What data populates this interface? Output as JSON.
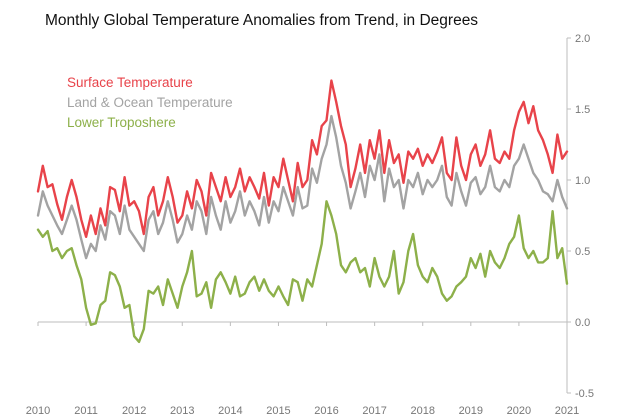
{
  "chart_data": {
    "type": "line",
    "title": "Monthly Global Temperature Anomalies from Trend, in Degrees",
    "xlabel": "",
    "ylabel": "",
    "xlim": [
      2010,
      2021
    ],
    "ylim": [
      -0.5,
      2.0
    ],
    "x_ticks": [
      "2010",
      "2011",
      "2012",
      "2013",
      "2014",
      "2015",
      "2016",
      "2017",
      "2018",
      "2019",
      "2020",
      "2021"
    ],
    "y_ticks": [
      "2.0",
      "1.5",
      "1.0",
      "0.5",
      "0.0",
      "-0.5"
    ],
    "grid": false,
    "legend_position": "top-left",
    "series": [
      {
        "name": "Surface Temperature",
        "color": "#e8434a",
        "x": [
          2010.0,
          2010.1,
          2010.2,
          2010.3,
          2010.4,
          2010.5,
          2010.6,
          2010.7,
          2010.8,
          2010.9,
          2011.0,
          2011.1,
          2011.2,
          2011.3,
          2011.4,
          2011.5,
          2011.6,
          2011.7,
          2011.8,
          2011.9,
          2012.0,
          2012.1,
          2012.2,
          2012.3,
          2012.4,
          2012.5,
          2012.6,
          2012.7,
          2012.8,
          2012.9,
          2013.0,
          2013.1,
          2013.2,
          2013.3,
          2013.4,
          2013.5,
          2013.6,
          2013.7,
          2013.8,
          2013.9,
          2014.0,
          2014.1,
          2014.2,
          2014.3,
          2014.4,
          2014.5,
          2014.6,
          2014.7,
          2014.8,
          2014.9,
          2015.0,
          2015.1,
          2015.2,
          2015.3,
          2015.4,
          2015.5,
          2015.6,
          2015.7,
          2015.8,
          2015.9,
          2016.0,
          2016.1,
          2016.2,
          2016.3,
          2016.4,
          2016.5,
          2016.6,
          2016.7,
          2016.8,
          2016.9,
          2017.0,
          2017.1,
          2017.2,
          2017.3,
          2017.4,
          2017.5,
          2017.6,
          2017.7,
          2017.8,
          2017.9,
          2018.0,
          2018.1,
          2018.2,
          2018.3,
          2018.4,
          2018.5,
          2018.6,
          2018.7,
          2018.8,
          2018.9,
          2019.0,
          2019.1,
          2019.2,
          2019.3,
          2019.4,
          2019.5,
          2019.6,
          2019.7,
          2019.8,
          2019.9,
          2020.0,
          2020.1,
          2020.2,
          2020.3,
          2020.4,
          2020.5,
          2020.6,
          2020.7,
          2020.8,
          2020.9,
          2021.0
        ],
        "values": [
          0.92,
          1.1,
          0.95,
          0.97,
          0.83,
          0.72,
          0.88,
          1.0,
          0.88,
          0.72,
          0.6,
          0.75,
          0.62,
          0.8,
          0.68,
          0.95,
          0.93,
          0.78,
          1.02,
          0.82,
          0.85,
          0.78,
          0.62,
          0.88,
          0.95,
          0.75,
          0.85,
          1.02,
          0.88,
          0.7,
          0.75,
          0.92,
          0.8,
          1.0,
          0.92,
          0.75,
          1.05,
          0.95,
          0.85,
          1.02,
          0.88,
          0.95,
          1.08,
          0.92,
          1.02,
          0.95,
          0.87,
          1.05,
          0.82,
          1.02,
          0.95,
          1.15,
          1.0,
          0.85,
          1.12,
          0.95,
          1.0,
          1.28,
          1.18,
          1.38,
          1.42,
          1.7,
          1.55,
          1.38,
          1.25,
          0.95,
          1.08,
          1.25,
          1.05,
          1.28,
          1.15,
          1.35,
          1.05,
          1.28,
          1.12,
          1.18,
          0.98,
          1.2,
          1.15,
          1.22,
          1.1,
          1.18,
          1.12,
          1.2,
          1.3,
          1.05,
          1.0,
          1.3,
          1.1,
          1.0,
          1.18,
          1.25,
          1.1,
          1.18,
          1.35,
          1.15,
          1.12,
          1.2,
          1.15,
          1.35,
          1.48,
          1.55,
          1.4,
          1.52,
          1.35,
          1.28,
          1.18,
          1.05,
          1.32,
          1.15,
          1.2
        ]
      },
      {
        "name": "Land & Ocean Temperature",
        "color": "#a3a3a3",
        "x": [
          2010.0,
          2010.1,
          2010.2,
          2010.3,
          2010.4,
          2010.5,
          2010.6,
          2010.7,
          2010.8,
          2010.9,
          2011.0,
          2011.1,
          2011.2,
          2011.3,
          2011.4,
          2011.5,
          2011.6,
          2011.7,
          2011.8,
          2011.9,
          2012.0,
          2012.1,
          2012.2,
          2012.3,
          2012.4,
          2012.5,
          2012.6,
          2012.7,
          2012.8,
          2012.9,
          2013.0,
          2013.1,
          2013.2,
          2013.3,
          2013.4,
          2013.5,
          2013.6,
          2013.7,
          2013.8,
          2013.9,
          2014.0,
          2014.1,
          2014.2,
          2014.3,
          2014.4,
          2014.5,
          2014.6,
          2014.7,
          2014.8,
          2014.9,
          2015.0,
          2015.1,
          2015.2,
          2015.3,
          2015.4,
          2015.5,
          2015.6,
          2015.7,
          2015.8,
          2015.9,
          2016.0,
          2016.1,
          2016.2,
          2016.3,
          2016.4,
          2016.5,
          2016.6,
          2016.7,
          2016.8,
          2016.9,
          2017.0,
          2017.1,
          2017.2,
          2017.3,
          2017.4,
          2017.5,
          2017.6,
          2017.7,
          2017.8,
          2017.9,
          2018.0,
          2018.1,
          2018.2,
          2018.3,
          2018.4,
          2018.5,
          2018.6,
          2018.7,
          2018.8,
          2018.9,
          2019.0,
          2019.1,
          2019.2,
          2019.3,
          2019.4,
          2019.5,
          2019.6,
          2019.7,
          2019.8,
          2019.9,
          2020.0,
          2020.1,
          2020.2,
          2020.3,
          2020.4,
          2020.5,
          2020.6,
          2020.7,
          2020.8,
          2020.9,
          2021.0
        ],
        "values": [
          0.75,
          0.92,
          0.82,
          0.75,
          0.68,
          0.62,
          0.72,
          0.82,
          0.72,
          0.58,
          0.45,
          0.55,
          0.5,
          0.68,
          0.58,
          0.78,
          0.75,
          0.62,
          0.82,
          0.65,
          0.6,
          0.55,
          0.5,
          0.72,
          0.78,
          0.62,
          0.7,
          0.85,
          0.72,
          0.56,
          0.62,
          0.75,
          0.65,
          0.85,
          0.78,
          0.62,
          0.88,
          0.75,
          0.65,
          0.85,
          0.7,
          0.78,
          0.92,
          0.75,
          0.85,
          0.78,
          0.68,
          0.88,
          0.7,
          0.85,
          0.78,
          0.95,
          0.85,
          0.75,
          0.95,
          0.8,
          0.82,
          1.08,
          0.98,
          1.15,
          1.25,
          1.45,
          1.3,
          1.1,
          0.98,
          0.8,
          0.92,
          1.05,
          0.88,
          1.1,
          1.0,
          1.18,
          0.85,
          1.08,
          0.95,
          1.0,
          0.8,
          1.0,
          0.95,
          1.05,
          0.9,
          1.0,
          0.95,
          1.0,
          1.1,
          0.88,
          0.82,
          1.05,
          0.92,
          0.82,
          0.98,
          1.02,
          0.9,
          0.95,
          1.1,
          0.95,
          0.92,
          1.0,
          0.95,
          1.1,
          1.15,
          1.25,
          1.15,
          1.05,
          1.0,
          0.92,
          0.9,
          0.85,
          1.0,
          0.88,
          0.8
        ]
      },
      {
        "name": "Lower Troposhere",
        "color": "#8db04a",
        "x": [
          2010.0,
          2010.1,
          2010.2,
          2010.3,
          2010.4,
          2010.5,
          2010.6,
          2010.7,
          2010.8,
          2010.9,
          2011.0,
          2011.1,
          2011.2,
          2011.3,
          2011.4,
          2011.5,
          2011.6,
          2011.7,
          2011.8,
          2011.9,
          2012.0,
          2012.1,
          2012.2,
          2012.3,
          2012.4,
          2012.5,
          2012.6,
          2012.7,
          2012.8,
          2012.9,
          2013.0,
          2013.1,
          2013.2,
          2013.3,
          2013.4,
          2013.5,
          2013.6,
          2013.7,
          2013.8,
          2013.9,
          2014.0,
          2014.1,
          2014.2,
          2014.3,
          2014.4,
          2014.5,
          2014.6,
          2014.7,
          2014.8,
          2014.9,
          2015.0,
          2015.1,
          2015.2,
          2015.3,
          2015.4,
          2015.5,
          2015.6,
          2015.7,
          2015.8,
          2015.9,
          2016.0,
          2016.1,
          2016.2,
          2016.3,
          2016.4,
          2016.5,
          2016.6,
          2016.7,
          2016.8,
          2016.9,
          2017.0,
          2017.1,
          2017.2,
          2017.3,
          2017.4,
          2017.5,
          2017.6,
          2017.7,
          2017.8,
          2017.9,
          2018.0,
          2018.1,
          2018.2,
          2018.3,
          2018.4,
          2018.5,
          2018.6,
          2018.7,
          2018.8,
          2018.9,
          2019.0,
          2019.1,
          2019.2,
          2019.3,
          2019.4,
          2019.5,
          2019.6,
          2019.7,
          2019.8,
          2019.9,
          2020.0,
          2020.1,
          2020.2,
          2020.3,
          2020.4,
          2020.5,
          2020.6,
          2020.7,
          2020.8,
          2020.9,
          2021.0
        ],
        "values": [
          0.65,
          0.6,
          0.64,
          0.5,
          0.52,
          0.45,
          0.5,
          0.52,
          0.4,
          0.3,
          0.1,
          -0.02,
          -0.01,
          0.12,
          0.15,
          0.35,
          0.33,
          0.25,
          0.1,
          0.12,
          -0.1,
          -0.14,
          -0.05,
          0.22,
          0.2,
          0.25,
          0.12,
          0.3,
          0.2,
          0.1,
          0.25,
          0.35,
          0.5,
          0.18,
          0.2,
          0.28,
          0.1,
          0.3,
          0.35,
          0.28,
          0.2,
          0.32,
          0.18,
          0.2,
          0.28,
          0.32,
          0.22,
          0.3,
          0.22,
          0.18,
          0.25,
          0.18,
          0.12,
          0.3,
          0.28,
          0.15,
          0.3,
          0.25,
          0.4,
          0.55,
          0.85,
          0.75,
          0.62,
          0.4,
          0.35,
          0.42,
          0.45,
          0.35,
          0.38,
          0.25,
          0.45,
          0.32,
          0.25,
          0.32,
          0.5,
          0.2,
          0.28,
          0.5,
          0.62,
          0.4,
          0.32,
          0.28,
          0.38,
          0.32,
          0.2,
          0.15,
          0.18,
          0.25,
          0.28,
          0.32,
          0.45,
          0.38,
          0.48,
          0.32,
          0.5,
          0.42,
          0.38,
          0.45,
          0.55,
          0.6,
          0.75,
          0.52,
          0.45,
          0.5,
          0.42,
          0.42,
          0.45,
          0.78,
          0.45,
          0.52,
          0.27
        ]
      }
    ]
  }
}
